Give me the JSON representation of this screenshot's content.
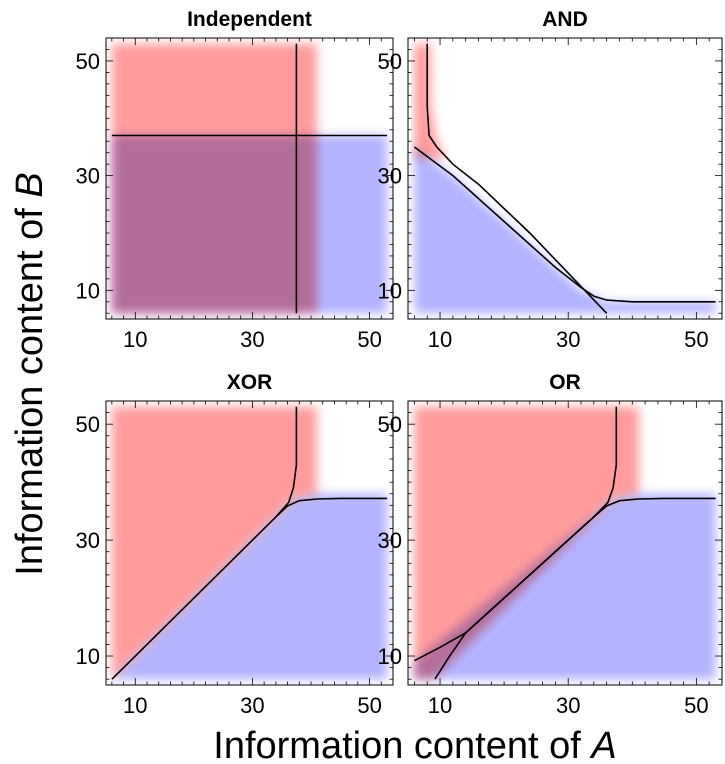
{
  "figure": {
    "xlabel_prefix": "Information content of ",
    "xlabel_var": "A",
    "ylabel_prefix": "Information content of ",
    "ylabel_var": "B"
  },
  "colors": {
    "red_region": "#ff8a8a",
    "blue_region": "#9a9aff",
    "overlap": "#7a4cc8",
    "boundary_line": "#000000"
  },
  "chart_data": [
    {
      "type": "area",
      "title": "Independent",
      "xlim": [
        5,
        54
      ],
      "ylim": [
        5,
        54
      ],
      "xticks": [
        10,
        30,
        50
      ],
      "yticks": [
        10,
        30,
        50
      ],
      "red_region_vertices": [
        [
          6,
          53
        ],
        [
          38,
          53
        ],
        [
          41,
          53
        ],
        [
          41,
          6
        ],
        [
          6,
          6
        ]
      ],
      "blue_region_vertices": [
        [
          6,
          37
        ],
        [
          53,
          37
        ],
        [
          53,
          6
        ],
        [
          6,
          6
        ]
      ],
      "lines": [
        {
          "x": [
            37.5,
            37.5
          ],
          "y": [
            6,
            53
          ]
        },
        {
          "x": [
            6,
            53
          ],
          "y": [
            37,
            37
          ]
        }
      ]
    },
    {
      "type": "area",
      "title": "AND",
      "xlim": [
        5,
        54
      ],
      "ylim": [
        5,
        54
      ],
      "xticks": [
        10,
        30,
        50
      ],
      "yticks": [
        10,
        30,
        50
      ],
      "red_region_vertices": [
        [
          6,
          53
        ],
        [
          8.5,
          53
        ],
        [
          8.6,
          42
        ],
        [
          9.5,
          36
        ],
        [
          11,
          33
        ],
        [
          6,
          33
        ]
      ],
      "blue_region_vertices": [
        [
          6,
          35
        ],
        [
          12,
          30
        ],
        [
          20,
          22
        ],
        [
          28,
          14
        ],
        [
          32,
          10
        ],
        [
          36,
          8
        ],
        [
          53,
          8
        ],
        [
          53,
          6
        ],
        [
          6,
          6
        ]
      ],
      "lines": [
        {
          "x": [
            8,
            8,
            8.3,
            9.5,
            12,
            16
          ],
          "y": [
            53,
            42,
            37,
            35,
            32,
            28.5
          ]
        },
        {
          "x": [
            6,
            12,
            20,
            28,
            32,
            34,
            36,
            40,
            53
          ],
          "y": [
            35,
            30,
            22,
            14,
            10.5,
            9,
            8.3,
            8,
            8
          ]
        },
        {
          "x": [
            16,
            24,
            30,
            33,
            36
          ],
          "y": [
            28.5,
            20,
            13,
            9.5,
            6
          ]
        }
      ]
    },
    {
      "type": "area",
      "title": "XOR",
      "xlim": [
        5,
        54
      ],
      "ylim": [
        5,
        54
      ],
      "xticks": [
        10,
        30,
        50
      ],
      "yticks": [
        10,
        30,
        50
      ],
      "red_region_vertices": [
        [
          6,
          53
        ],
        [
          38,
          53
        ],
        [
          41,
          53
        ],
        [
          41,
          38
        ],
        [
          37,
          37
        ],
        [
          6,
          6
        ]
      ],
      "blue_region_vertices": [
        [
          6,
          6
        ],
        [
          37,
          37
        ],
        [
          41,
          38
        ],
        [
          53,
          38
        ],
        [
          53,
          6
        ]
      ],
      "lines": [
        {
          "x": [
            6,
            34,
            36.2,
            37,
            37.5,
            37.5
          ],
          "y": [
            6,
            34,
            36.5,
            39,
            43,
            53
          ]
        },
        {
          "x": [
            34,
            36,
            38,
            41,
            45,
            53
          ],
          "y": [
            34,
            35.9,
            36.8,
            37.1,
            37.2,
            37.2
          ]
        }
      ]
    },
    {
      "type": "area",
      "title": "OR",
      "xlim": [
        5,
        54
      ],
      "ylim": [
        5,
        54
      ],
      "xticks": [
        10,
        30,
        50
      ],
      "yticks": [
        10,
        30,
        50
      ],
      "red_region_vertices": [
        [
          6,
          53
        ],
        [
          38,
          53
        ],
        [
          41,
          53
        ],
        [
          41,
          38
        ],
        [
          37,
          37
        ],
        [
          9,
          6
        ],
        [
          6,
          6
        ]
      ],
      "blue_region_vertices": [
        [
          6,
          9
        ],
        [
          37,
          37
        ],
        [
          41,
          38
        ],
        [
          53,
          38
        ],
        [
          53,
          6
        ],
        [
          6,
          6
        ]
      ],
      "lines": [
        {
          "x": [
            6,
            10,
            14,
            34,
            36.2,
            37,
            37.5,
            37.5
          ],
          "y": [
            9.2,
            11.5,
            14,
            34,
            36.5,
            39,
            43,
            53
          ]
        },
        {
          "x": [
            9.2,
            11.5,
            14,
            34,
            36,
            38,
            41,
            45,
            53
          ],
          "y": [
            6,
            10,
            14,
            34,
            35.9,
            36.8,
            37.1,
            37.2,
            37.2
          ]
        }
      ]
    }
  ]
}
